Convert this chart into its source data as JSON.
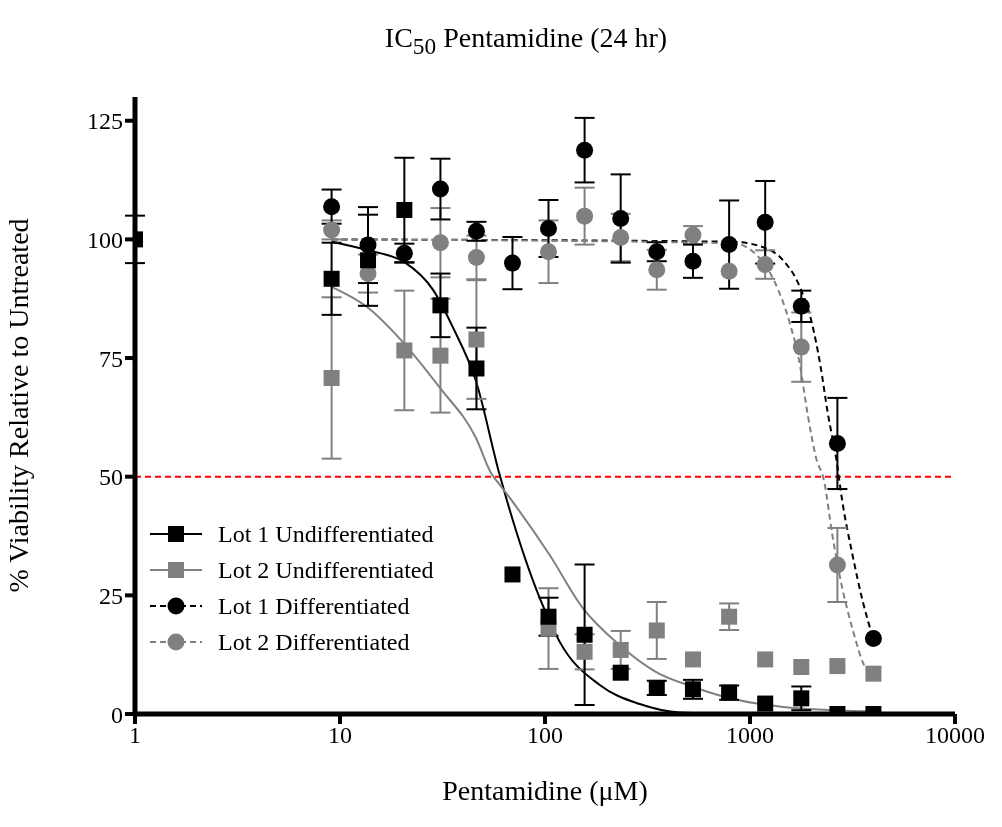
{
  "chart_data": {
    "type": "scatter",
    "title": "IC$_{50}$ Pentamidine (24 hr)",
    "xlabel": "Pentamidine (μM)",
    "ylabel": "% Viability Relative to Untreated",
    "x": [
      1,
      9.1,
      13.7,
      20.6,
      30.9,
      46.3,
      69.4,
      104,
      156,
      234,
      351,
      527,
      791,
      1186,
      1779,
      2669,
      4000
    ],
    "series": [
      {
        "name": "Lot 1 Undifferentiated",
        "color": "#000000",
        "marker": "square",
        "line_style": "solid",
        "values": [
          100,
          91.7,
          95.6,
          106.2,
          86.1,
          72.8,
          29.4,
          20.5,
          16.7,
          8.7,
          5.5,
          5.2,
          4.5,
          2.2,
          3.3,
          0,
          0
        ],
        "errors": [
          5,
          7.6,
          9.6,
          11,
          6.7,
          8.6,
          null,
          4,
          14.8,
          null,
          1.5,
          2,
          1.5,
          null,
          2.5,
          null,
          null
        ]
      },
      {
        "name": "Lot 2 Undifferentiated",
        "color": "#808080",
        "marker": "square",
        "line_style": "solid",
        "values": [
          null,
          70.8,
          null,
          76.6,
          75.5,
          78.9,
          null,
          18,
          13.1,
          13.5,
          17.6,
          11.5,
          20.5,
          11.5,
          9.9,
          10.1,
          8.5
        ],
        "errors": [
          null,
          17,
          null,
          12.6,
          12,
          12.5,
          null,
          8.5,
          3.7,
          4,
          6,
          null,
          2.8,
          null,
          null,
          null,
          null
        ]
      },
      {
        "name": "Lot 1 Differentiated",
        "color": "#000000",
        "marker": "circle",
        "line_style": "dashed",
        "values": [
          null,
          106.9,
          98.8,
          97.1,
          110.6,
          101.7,
          95,
          102.3,
          118.8,
          104.4,
          97.4,
          95.4,
          98.9,
          103.6,
          85.9,
          57,
          15.9
        ],
        "errors": [
          null,
          3.6,
          8,
          2,
          6.4,
          2,
          5.5,
          6,
          6.8,
          9.3,
          2,
          3.5,
          9.3,
          8.7,
          3.3,
          9.6,
          null
        ]
      },
      {
        "name": "Lot 2 Differentiated",
        "color": "#808080",
        "marker": "circle",
        "line_style": "dashed",
        "values": [
          null,
          102,
          92.8,
          null,
          99.3,
          96.2,
          null,
          97.4,
          104.9,
          100.4,
          93.6,
          100.9,
          93.3,
          94.7,
          77.3,
          31.4,
          null
        ],
        "errors": [
          null,
          2,
          4,
          null,
          7.3,
          4.6,
          null,
          6.6,
          6,
          5,
          4.2,
          1.9,
          null,
          3,
          7.3,
          7.8,
          null
        ]
      },
      {
        "type": "line",
        "color": "#000000",
        "line_style": "solid",
        "marker": "none",
        "x": [
          9.1,
          13.7,
          20.6,
          28.5,
          35.5,
          46,
          60,
          94.5,
          118,
          185,
          290,
          455,
          800,
          4000
        ],
        "values": [
          99.5,
          97.7,
          95.2,
          89.3,
          81.5,
          70.2,
          50.5,
          24.3,
          15.2,
          6.1,
          2.1,
          0.3,
          0,
          0
        ]
      },
      {
        "type": "line",
        "color": "#808080",
        "line_style": "solid",
        "marker": "none",
        "x": [
          9.1,
          13.6,
          20.6,
          30.6,
          46,
          55,
          60,
          105,
          153,
          230,
          347,
          530,
          820,
          1450,
          3700
        ],
        "values": [
          90,
          85.7,
          78,
          68.8,
          58.2,
          50.5,
          48.4,
          33.6,
          22.3,
          14.6,
          8.9,
          5.7,
          3.2,
          1.5,
          0.6
        ]
      },
      {
        "type": "line",
        "color": "#000000",
        "line_style": "dashed",
        "marker": "none",
        "x": [
          9.1,
          823,
          1200,
          1450,
          1750,
          1990,
          2200,
          2400,
          2630,
          2820,
          3160,
          3550,
          3900
        ],
        "values": [
          100,
          99.5,
          98.1,
          95.6,
          90,
          82.9,
          73.7,
          63.2,
          54,
          44.8,
          33.6,
          23.7,
          17.3
        ]
      },
      {
        "type": "line",
        "color": "#808080",
        "line_style": "dashed",
        "marker": "none",
        "x": [
          9.1,
          823,
          1100,
          1330,
          1550,
          1750,
          1910,
          2100,
          2300,
          2520,
          2820,
          3160,
          3600,
          4000
        ],
        "values": [
          100,
          99.2,
          96.3,
          90.7,
          82.9,
          73.7,
          63.2,
          54,
          49,
          37.8,
          26.5,
          18,
          10.3,
          8
        ]
      }
    ],
    "log": "x",
    "xlim": [
      1,
      10000
    ],
    "xticks": [
      1,
      10,
      100,
      1000,
      10000
    ],
    "ylim": [
      0,
      130
    ],
    "yticks": [
      0,
      25,
      50,
      75,
      100,
      125
    ],
    "ref_lines": [
      {
        "axis": "y",
        "value": 50,
        "color": "#ff0000",
        "line_style": "dashed"
      }
    ],
    "grid": false,
    "legend": "bottom left"
  }
}
